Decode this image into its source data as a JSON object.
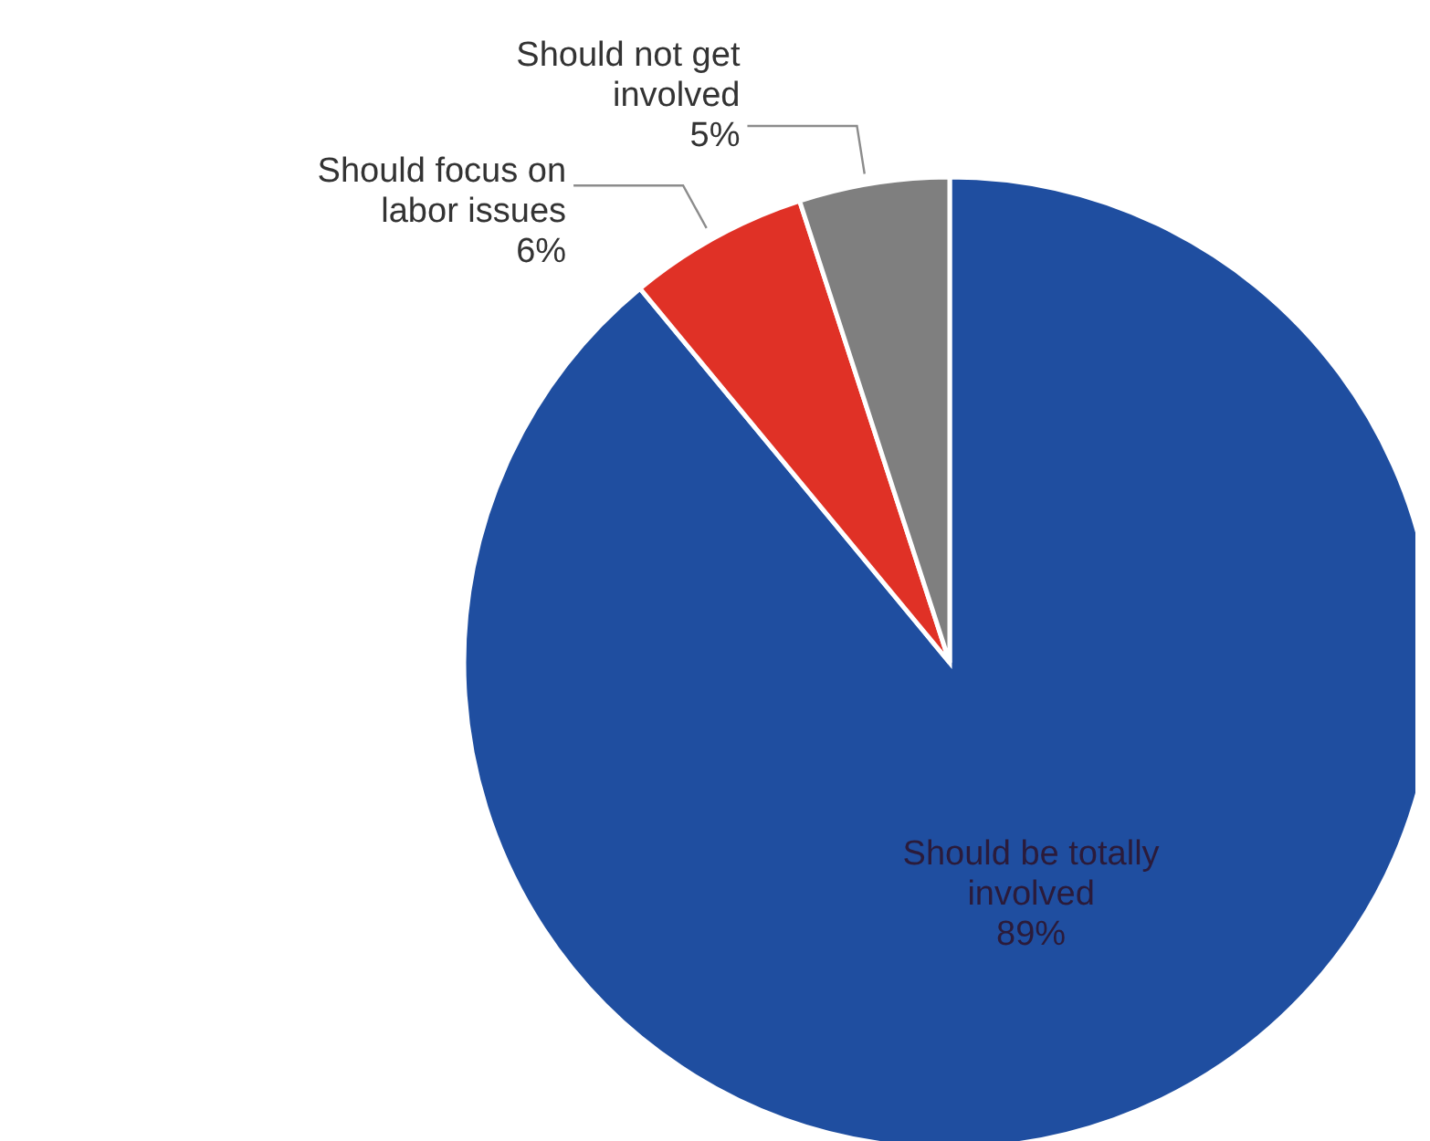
{
  "chart_data": {
    "type": "pie",
    "categories": [
      "Should be totally involved",
      "Should focus on labor issues",
      "Should not get involved"
    ],
    "values": [
      89,
      6,
      5
    ],
    "colors": [
      "#1f4ea0",
      "#e03126",
      "#7f7f7f"
    ],
    "value_labels": [
      "89%",
      "6%",
      "5%"
    ],
    "legend": false
  }
}
